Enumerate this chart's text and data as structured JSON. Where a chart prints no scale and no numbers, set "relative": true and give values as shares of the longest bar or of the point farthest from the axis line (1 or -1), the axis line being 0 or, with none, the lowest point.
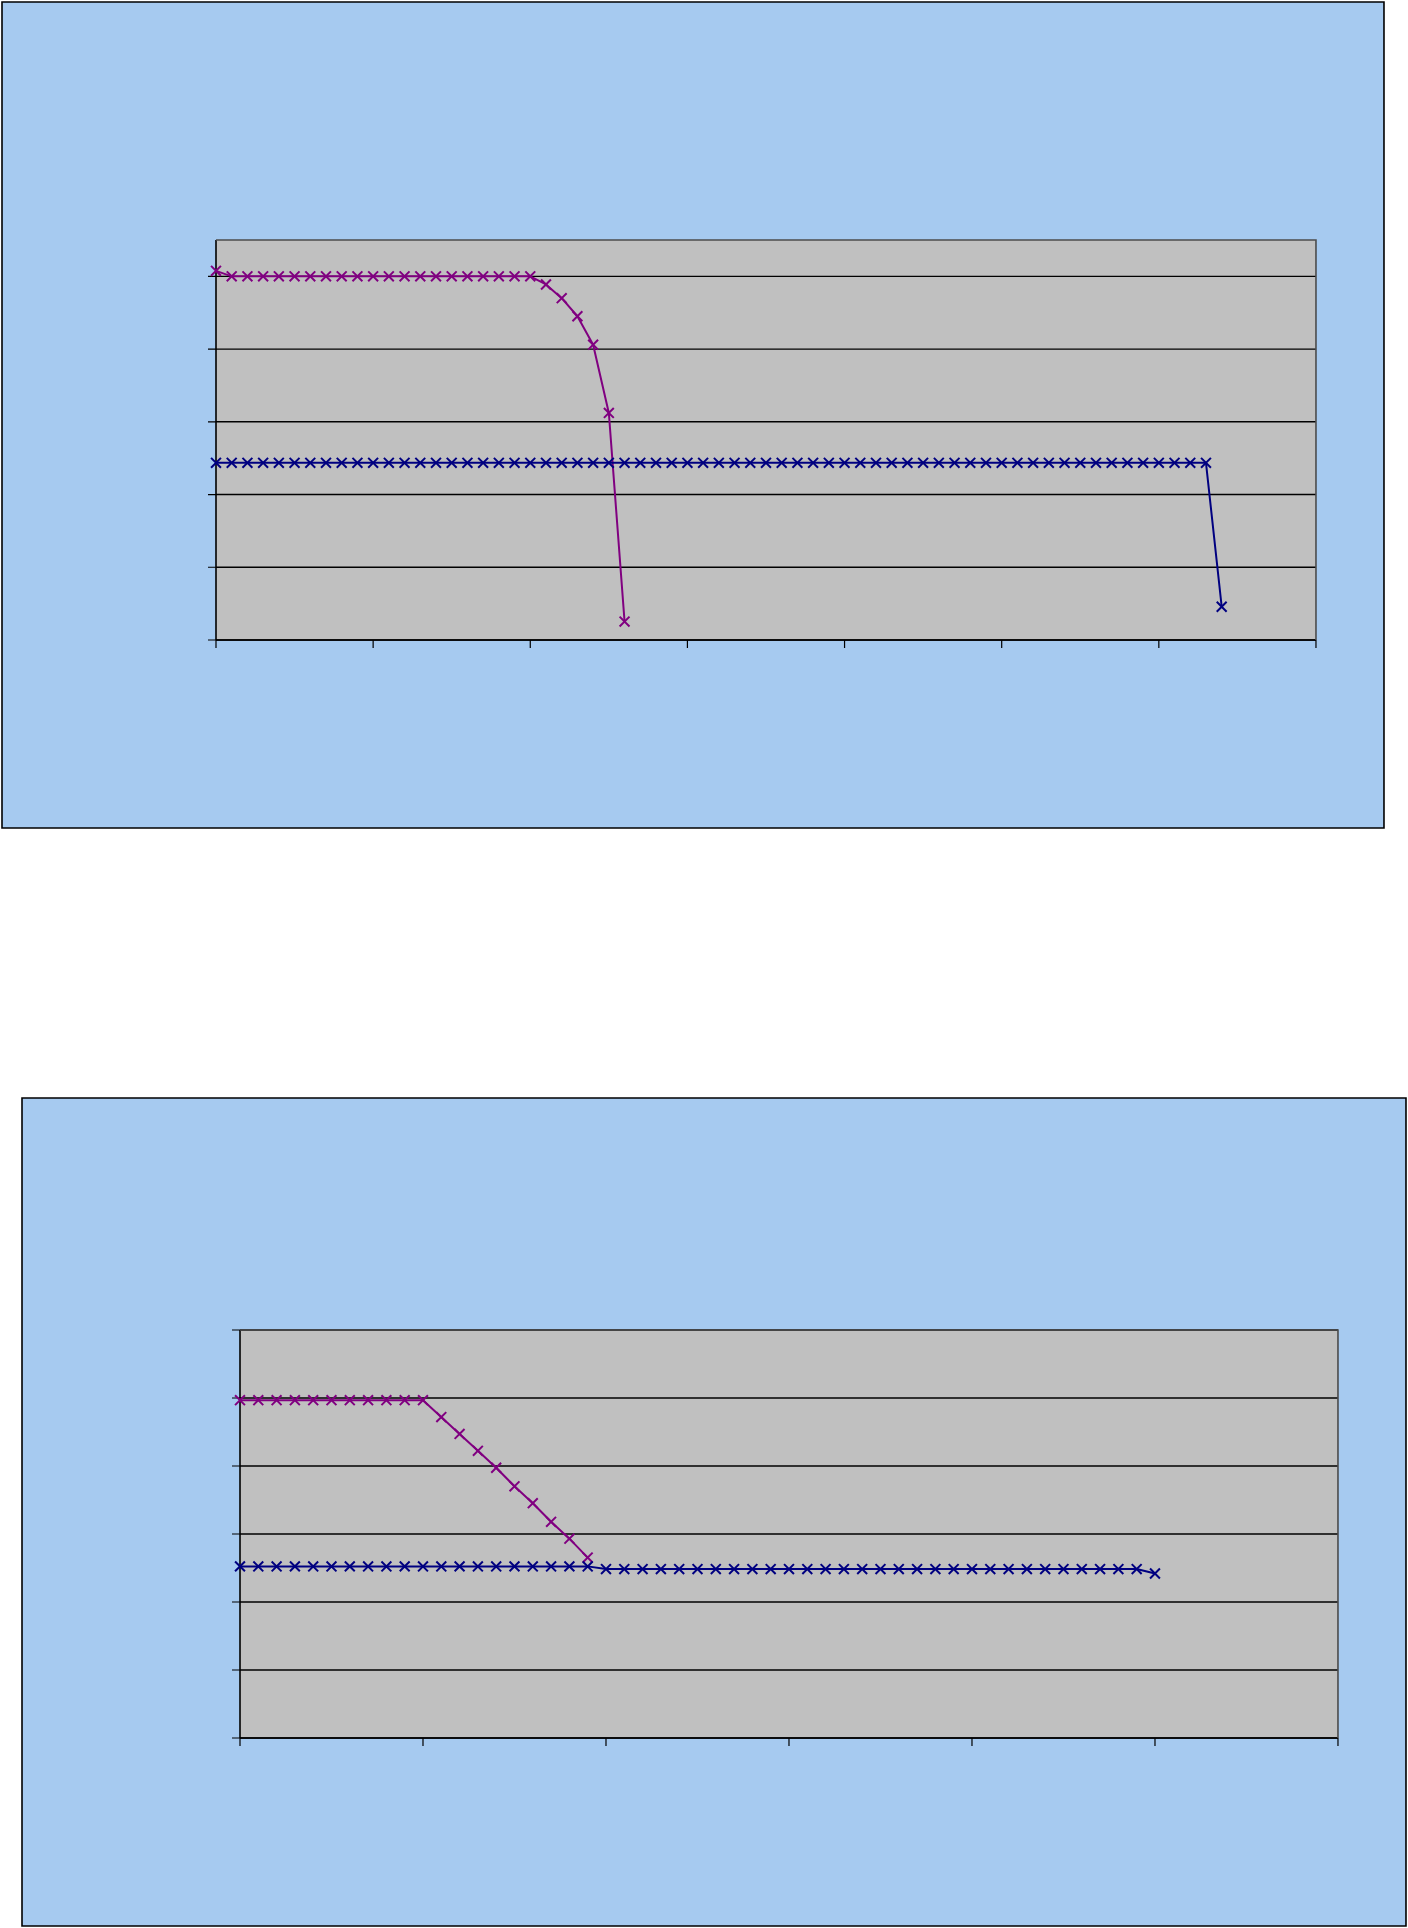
{
  "chart_data": [
    {
      "type": "line",
      "relative": true,
      "grid": "y",
      "marker": "cross",
      "line_style": "solid",
      "tick_labels": false,
      "categories": [
        null,
        null,
        null,
        null,
        null,
        null,
        null,
        null,
        null,
        null,
        null,
        null,
        null,
        null,
        null,
        null,
        null,
        null,
        null,
        null,
        null,
        null,
        null,
        null,
        null,
        null,
        null,
        null,
        null,
        null,
        null,
        null,
        null,
        null,
        null,
        null,
        null,
        null,
        null,
        null,
        null,
        null,
        null,
        null,
        null,
        null,
        null,
        null,
        null,
        null,
        null,
        null,
        null,
        null,
        null,
        null,
        null,
        null,
        null,
        null,
        null,
        null,
        null,
        null,
        null,
        null,
        null,
        null,
        null,
        null,
        null
      ],
      "series": [
        {
          "color": "#800080",
          "values": [
            1.0,
            0.985,
            0.985,
            0.985,
            0.985,
            0.985,
            0.985,
            0.985,
            0.985,
            0.985,
            0.985,
            0.985,
            0.985,
            0.985,
            0.985,
            0.985,
            0.985,
            0.985,
            0.985,
            0.985,
            0.985,
            0.963,
            0.926,
            0.877,
            0.8,
            0.615,
            0.05,
            null,
            null,
            null,
            null,
            null,
            null,
            null,
            null,
            null,
            null,
            null,
            null,
            null,
            null,
            null,
            null,
            null,
            null,
            null,
            null,
            null,
            null,
            null,
            null,
            null,
            null,
            null,
            null,
            null,
            null,
            null,
            null,
            null,
            null,
            null,
            null,
            null,
            null,
            null,
            null,
            null,
            null,
            null,
            null
          ]
        },
        {
          "color": "#000080",
          "values": [
            0.48,
            0.48,
            0.48,
            0.48,
            0.48,
            0.48,
            0.48,
            0.48,
            0.48,
            0.48,
            0.48,
            0.48,
            0.48,
            0.48,
            0.48,
            0.48,
            0.48,
            0.48,
            0.48,
            0.48,
            0.48,
            0.48,
            0.48,
            0.48,
            0.48,
            0.48,
            0.48,
            0.48,
            0.48,
            0.48,
            0.48,
            0.48,
            0.48,
            0.48,
            0.48,
            0.48,
            0.48,
            0.48,
            0.48,
            0.48,
            0.48,
            0.48,
            0.48,
            0.48,
            0.48,
            0.48,
            0.48,
            0.48,
            0.48,
            0.48,
            0.48,
            0.48,
            0.48,
            0.48,
            0.48,
            0.48,
            0.48,
            0.48,
            0.48,
            0.48,
            0.48,
            0.48,
            0.48,
            0.48,
            0.09,
            null,
            null,
            null,
            null,
            null,
            null
          ]
        }
      ]
    },
    {
      "type": "line",
      "relative": true,
      "grid": "y",
      "marker": "cross",
      "line_style": "solid",
      "tick_labels": false,
      "categories": [
        null,
        null,
        null,
        null,
        null,
        null,
        null,
        null,
        null,
        null,
        null,
        null,
        null,
        null,
        null,
        null,
        null,
        null,
        null,
        null,
        null,
        null,
        null,
        null,
        null,
        null,
        null,
        null,
        null,
        null,
        null,
        null,
        null,
        null,
        null,
        null,
        null,
        null,
        null,
        null,
        null,
        null,
        null,
        null,
        null,
        null,
        null,
        null,
        null,
        null,
        null,
        null,
        null,
        null,
        null,
        null,
        null,
        null,
        null,
        null,
        null
      ],
      "series": [
        {
          "color": "#800080",
          "values": [
            1.0,
            1.0,
            1.0,
            1.0,
            1.0,
            1.0,
            1.0,
            1.0,
            1.0,
            1.0,
            1.0,
            0.95,
            0.9,
            0.85,
            0.8,
            0.745,
            0.695,
            0.64,
            0.59,
            0.534,
            null,
            null,
            null,
            null,
            null,
            null,
            null,
            null,
            null,
            null,
            null,
            null,
            null,
            null,
            null,
            null,
            null,
            null,
            null,
            null,
            null,
            null,
            null,
            null,
            null,
            null,
            null,
            null,
            null,
            null,
            null,
            null,
            null,
            null,
            null,
            null,
            null,
            null,
            null,
            null,
            null
          ]
        },
        {
          "color": "#000080",
          "values": [
            0.508,
            0.508,
            0.508,
            0.508,
            0.508,
            0.508,
            0.508,
            0.508,
            0.508,
            0.508,
            0.508,
            0.508,
            0.508,
            0.508,
            0.508,
            0.508,
            0.508,
            0.508,
            0.508,
            0.508,
            0.5,
            0.5,
            0.5,
            0.5,
            0.5,
            0.5,
            0.5,
            0.5,
            0.5,
            0.5,
            0.5,
            0.5,
            0.5,
            0.5,
            0.5,
            0.5,
            0.5,
            0.5,
            0.5,
            0.5,
            0.5,
            0.5,
            0.5,
            0.5,
            0.5,
            0.5,
            0.5,
            0.5,
            0.5,
            0.5,
            0.487,
            null,
            null,
            null,
            null,
            null,
            null,
            null,
            null,
            null,
            null
          ]
        }
      ]
    }
  ]
}
